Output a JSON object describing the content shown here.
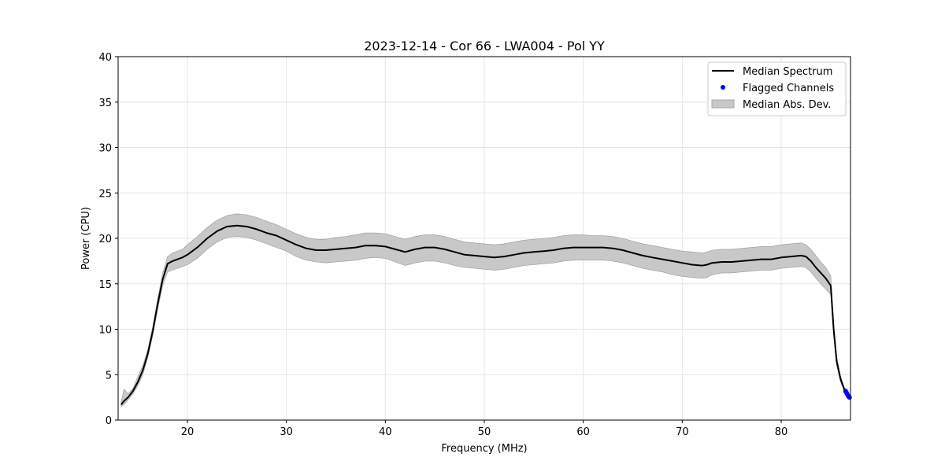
{
  "chart_data": {
    "type": "line",
    "title": "2023-12-14 - Cor 66 - LWA004 - Pol YY",
    "xlabel": "Frequency (MHz)",
    "ylabel": "Power (CPU)",
    "xlim": [
      13,
      87
    ],
    "ylim": [
      0,
      40
    ],
    "xticks": [
      20,
      30,
      40,
      50,
      60,
      70,
      80
    ],
    "yticks": [
      0,
      5,
      10,
      15,
      20,
      25,
      30,
      35,
      40
    ],
    "grid": true,
    "legend_position": "top-right",
    "legend": [
      "Median Spectrum",
      "Flagged Channels",
      "Median Abs. Dev."
    ],
    "series": [
      {
        "name": "Median Spectrum",
        "color": "#000000",
        "x": [
          13.3,
          13.6,
          14.0,
          14.5,
          15.0,
          15.5,
          16.0,
          16.5,
          17.0,
          17.5,
          18.0,
          18.5,
          19.0,
          19.5,
          20.0,
          21.0,
          22.0,
          23.0,
          24.0,
          25.0,
          26.0,
          27.0,
          28.0,
          29.0,
          30.0,
          31.0,
          32.0,
          33.0,
          34.0,
          35.0,
          36.0,
          37.0,
          38.0,
          39.0,
          40.0,
          41.0,
          42.0,
          43.0,
          44.0,
          45.0,
          46.0,
          47.0,
          48.0,
          49.0,
          50.0,
          51.0,
          52.0,
          53.0,
          54.0,
          55.0,
          56.0,
          57.0,
          58.0,
          59.0,
          60.0,
          61.0,
          62.0,
          63.0,
          64.0,
          65.0,
          66.0,
          67.0,
          68.0,
          69.0,
          70.0,
          71.0,
          72.0,
          72.5,
          73.0,
          74.0,
          75.0,
          76.0,
          77.0,
          78.0,
          79.0,
          80.0,
          81.0,
          82.0,
          82.5,
          83.0,
          83.5,
          84.0,
          84.5,
          85.0,
          85.3,
          85.6,
          86.0,
          86.4,
          86.8
        ],
        "values": [
          1.7,
          2.1,
          2.5,
          3.2,
          4.2,
          5.5,
          7.3,
          9.8,
          12.8,
          15.5,
          17.2,
          17.5,
          17.7,
          17.9,
          18.2,
          19.0,
          20.0,
          20.8,
          21.3,
          21.4,
          21.3,
          21.0,
          20.6,
          20.3,
          19.8,
          19.3,
          18.9,
          18.7,
          18.7,
          18.8,
          18.9,
          19.0,
          19.2,
          19.2,
          19.1,
          18.8,
          18.5,
          18.8,
          19.0,
          19.0,
          18.8,
          18.5,
          18.2,
          18.1,
          18.0,
          17.9,
          18.0,
          18.2,
          18.4,
          18.5,
          18.6,
          18.7,
          18.9,
          19.0,
          19.0,
          19.0,
          19.0,
          18.9,
          18.7,
          18.4,
          18.1,
          17.9,
          17.7,
          17.5,
          17.3,
          17.1,
          17.0,
          17.1,
          17.3,
          17.4,
          17.4,
          17.5,
          17.6,
          17.7,
          17.7,
          17.9,
          18.0,
          18.1,
          18.0,
          17.5,
          16.8,
          16.2,
          15.6,
          14.8,
          10.0,
          6.5,
          4.5,
          3.3,
          2.7
        ],
        "mad_lower": [
          1.5,
          1.7,
          2.2,
          2.9,
          3.8,
          5.0,
          6.9,
          9.3,
          12.2,
          14.8,
          16.3,
          16.5,
          16.7,
          16.9,
          17.1,
          17.8,
          18.8,
          19.6,
          20.1,
          20.2,
          20.1,
          19.8,
          19.4,
          19.0,
          18.6,
          18.0,
          17.6,
          17.4,
          17.3,
          17.4,
          17.5,
          17.6,
          17.8,
          17.9,
          17.8,
          17.4,
          17.0,
          17.3,
          17.5,
          17.5,
          17.3,
          17.0,
          16.8,
          16.7,
          16.6,
          16.5,
          16.6,
          16.8,
          17.0,
          17.1,
          17.2,
          17.3,
          17.5,
          17.6,
          17.6,
          17.6,
          17.6,
          17.5,
          17.3,
          17.0,
          16.7,
          16.5,
          16.3,
          16.0,
          15.8,
          15.7,
          15.6,
          15.7,
          16.0,
          16.2,
          16.2,
          16.3,
          16.4,
          16.5,
          16.5,
          16.7,
          16.8,
          16.9,
          16.8,
          16.3,
          15.6,
          15.0,
          14.4,
          13.8,
          9.3,
          6.0,
          4.2,
          3.1,
          2.5
        ],
        "mad_upper": [
          2.0,
          3.4,
          2.9,
          3.5,
          4.8,
          6.0,
          7.8,
          10.3,
          13.4,
          16.2,
          18.0,
          18.4,
          18.6,
          18.8,
          19.3,
          20.2,
          21.2,
          22.0,
          22.5,
          22.7,
          22.6,
          22.3,
          21.9,
          21.5,
          21.0,
          20.5,
          20.1,
          19.9,
          19.9,
          20.1,
          20.2,
          20.4,
          20.6,
          20.6,
          20.5,
          20.2,
          19.9,
          20.2,
          20.4,
          20.4,
          20.2,
          19.9,
          19.6,
          19.5,
          19.4,
          19.3,
          19.4,
          19.6,
          19.8,
          19.9,
          20.0,
          20.1,
          20.3,
          20.4,
          20.4,
          20.3,
          20.3,
          20.2,
          20.0,
          19.7,
          19.4,
          19.2,
          19.0,
          18.8,
          18.6,
          18.5,
          18.4,
          18.5,
          18.7,
          18.8,
          18.8,
          18.9,
          19.0,
          19.1,
          19.1,
          19.3,
          19.4,
          19.5,
          19.3,
          18.8,
          18.1,
          17.4,
          16.8,
          15.9,
          10.6,
          7.0,
          4.8,
          3.5,
          2.9
        ]
      },
      {
        "name": "Flagged Channels",
        "color": "#0000ff",
        "x": [
          86.5,
          86.6,
          86.7,
          86.8,
          86.9
        ],
        "values": [
          3.2,
          3.0,
          2.8,
          2.6,
          2.5
        ]
      }
    ],
    "mad_fill_color": "#c8c8c8"
  }
}
